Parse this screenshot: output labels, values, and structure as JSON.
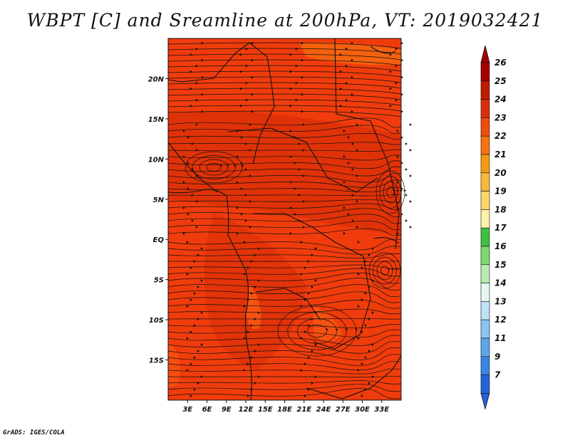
{
  "title": "WBPT [C] and Sreamline at 200hPa, VT: 2019032421",
  "footer": "GrADS: IGES/COLA",
  "map": {
    "lon_range": [
      0,
      36
    ],
    "lat_range": [
      -20,
      25
    ],
    "lon_ticks": [
      "3E",
      "6E",
      "9E",
      "12E",
      "15E",
      "18E",
      "21E",
      "24E",
      "27E",
      "30E",
      "33E"
    ],
    "lon_tick_values": [
      3,
      6,
      9,
      12,
      15,
      18,
      21,
      24,
      27,
      30,
      33
    ],
    "lat_ticks": [
      "20N",
      "15N",
      "10N",
      "5N",
      "EQ",
      "5S",
      "10S",
      "15S"
    ],
    "lat_tick_values": [
      20,
      15,
      10,
      5,
      0,
      -5,
      -10,
      -15
    ],
    "base_color": "#f03c0c",
    "warm_color": "#d42a06",
    "light_color": "#fa5a14",
    "cool_color": "#f56a10",
    "line_color": "#111111"
  },
  "colorbar": {
    "labels": [
      "26",
      "25",
      "24",
      "23",
      "22",
      "21",
      "20",
      "19",
      "18",
      "17",
      "16",
      "15",
      "14",
      "13",
      "12",
      "11",
      "9",
      "7"
    ],
    "colors": [
      "#a50000",
      "#c01a00",
      "#d92e08",
      "#f04c0c",
      "#f7720f",
      "#f59a10",
      "#f8b83a",
      "#fbd86a",
      "#fdf3a8",
      "#3fbf3f",
      "#7ed86e",
      "#b8ecb0",
      "#e6f7ef",
      "#bfe2f7",
      "#8cc4f0",
      "#5ea6ea",
      "#3a85e2",
      "#2464d6"
    ],
    "top_arrow_color": "#a50000",
    "bottom_arrow_color": "#2464d6"
  }
}
